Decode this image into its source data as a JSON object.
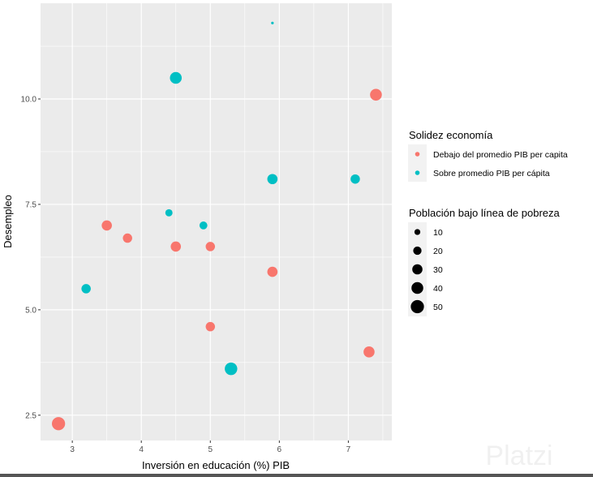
{
  "chart_data": {
    "type": "scatter",
    "xlabel": "Inversión en educación (%) PIB",
    "ylabel": "Desempleo",
    "xlim": [
      2.54,
      7.63
    ],
    "ylim": [
      1.9,
      12.27
    ],
    "xticks": [
      3,
      4,
      5,
      6,
      7
    ],
    "yticks": [
      2.5,
      5.0,
      7.5,
      10.0
    ],
    "ytick_labels": [
      "2.5",
      "5.0",
      "7.5",
      "10.0"
    ],
    "grid": true,
    "legend_placement": "right",
    "color_legend": {
      "title": "Solidez economía",
      "entries": [
        {
          "label": "Debajo del promedio PIB per capita",
          "color": "#F8766D"
        },
        {
          "label": "Sobre promedio PIB per cápita",
          "color": "#00BFC4"
        }
      ]
    },
    "size_legend": {
      "title": "Población bajo línea de pobreza",
      "values": [
        10,
        20,
        30,
        40,
        50
      ]
    },
    "points": [
      {
        "x": 5.9,
        "y": 11.8,
        "group": 1,
        "size": 2
      },
      {
        "x": 4.5,
        "y": 10.5,
        "group": 1,
        "size": 40
      },
      {
        "x": 7.4,
        "y": 10.1,
        "group": 0,
        "size": 40
      },
      {
        "x": 5.9,
        "y": 8.1,
        "group": 1,
        "size": 30
      },
      {
        "x": 7.1,
        "y": 8.1,
        "group": 1,
        "size": 25
      },
      {
        "x": 4.4,
        "y": 7.3,
        "group": 1,
        "size": 15
      },
      {
        "x": 4.9,
        "y": 7.0,
        "group": 1,
        "size": 18
      },
      {
        "x": 3.5,
        "y": 7.0,
        "group": 0,
        "size": 30
      },
      {
        "x": 3.8,
        "y": 6.7,
        "group": 0,
        "size": 25
      },
      {
        "x": 4.5,
        "y": 6.5,
        "group": 0,
        "size": 30
      },
      {
        "x": 5.0,
        "y": 6.5,
        "group": 0,
        "size": 25
      },
      {
        "x": 5.9,
        "y": 5.9,
        "group": 0,
        "size": 30
      },
      {
        "x": 3.2,
        "y": 5.5,
        "group": 1,
        "size": 25
      },
      {
        "x": 5.0,
        "y": 4.6,
        "group": 0,
        "size": 25
      },
      {
        "x": 5.3,
        "y": 3.6,
        "group": 1,
        "size": 45
      },
      {
        "x": 7.3,
        "y": 4.0,
        "group": 0,
        "size": 35
      },
      {
        "x": 2.8,
        "y": 2.3,
        "group": 0,
        "size": 50
      }
    ]
  },
  "watermark": "Platzi"
}
